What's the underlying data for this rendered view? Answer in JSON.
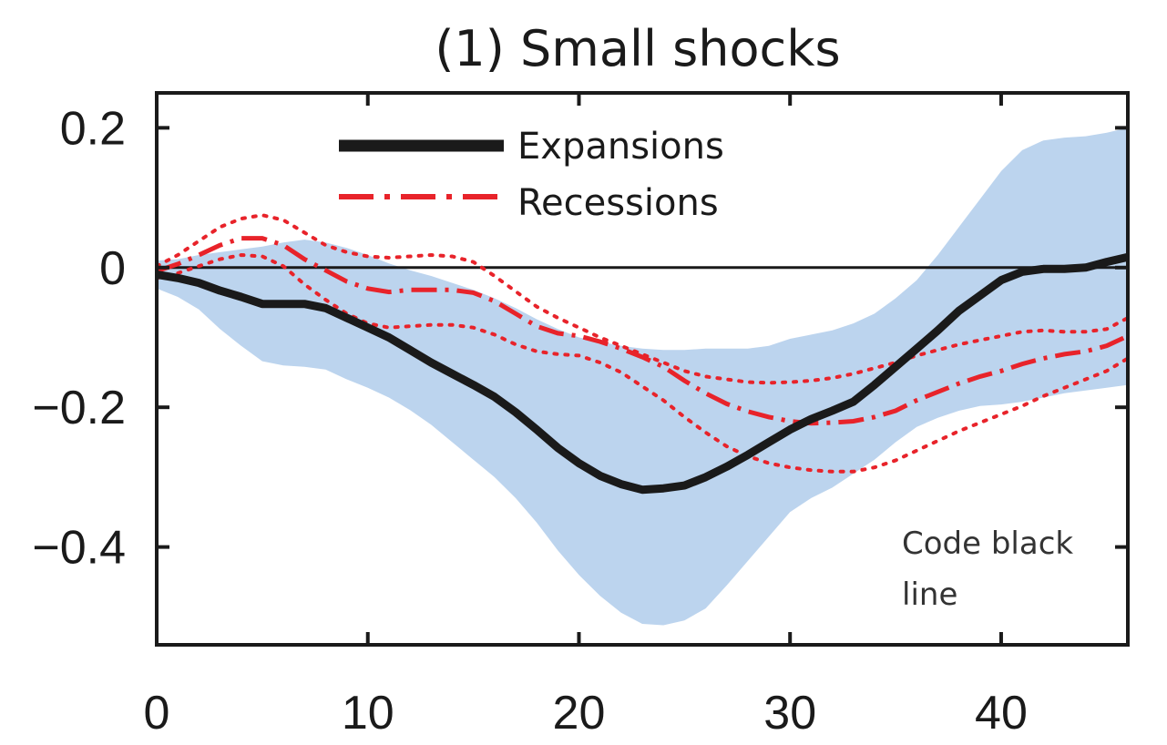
{
  "chart_data": {
    "type": "line",
    "title": "(1) Small shocks",
    "xlabel": "",
    "ylabel": "",
    "xlim": [
      0,
      46
    ],
    "ylim": [
      -0.54,
      0.25
    ],
    "x_ticks": [
      0,
      10,
      20,
      30,
      40
    ],
    "x_tick_labels": [
      "0",
      "10",
      "20",
      "30",
      "40"
    ],
    "y_ticks": [
      0.2,
      0,
      -0.2,
      -0.4
    ],
    "y_tick_labels": [
      "0.2",
      "0",
      "−0.2",
      "−0.4"
    ],
    "grid": false,
    "zero_line": true,
    "legend_position": "top-center",
    "colors": {
      "expansions": "#1a1a1a",
      "recessions": "#e8232a",
      "band": "#bcd4ee",
      "axis": "#1a1a1a"
    },
    "series": [
      {
        "name": "Expansions",
        "style": "solid",
        "x": [
          0,
          1,
          2,
          3,
          4,
          5,
          6,
          7,
          8,
          9,
          10,
          11,
          12,
          13,
          14,
          15,
          16,
          17,
          18,
          19,
          20,
          21,
          22,
          23,
          24,
          25,
          26,
          27,
          28,
          29,
          30,
          31,
          32,
          33,
          34,
          35,
          36,
          37,
          38,
          39,
          40,
          41,
          42,
          43,
          44,
          45,
          46
        ],
        "y": [
          -0.01,
          -0.015,
          -0.022,
          -0.033,
          -0.042,
          -0.052,
          -0.052,
          -0.052,
          -0.058,
          -0.072,
          -0.086,
          -0.1,
          -0.118,
          -0.136,
          -0.152,
          -0.168,
          -0.185,
          -0.207,
          -0.232,
          -0.258,
          -0.28,
          -0.298,
          -0.31,
          -0.318,
          -0.316,
          -0.312,
          -0.3,
          -0.285,
          -0.268,
          -0.25,
          -0.232,
          -0.217,
          -0.205,
          -0.192,
          -0.168,
          -0.142,
          -0.116,
          -0.09,
          -0.062,
          -0.04,
          -0.018,
          -0.006,
          -0.002,
          -0.002,
          0.0,
          0.008,
          0.015
        ]
      },
      {
        "name": "Recessions",
        "style": "dash-dot",
        "x": [
          0,
          1,
          2,
          3,
          4,
          5,
          6,
          7,
          8,
          9,
          10,
          11,
          12,
          13,
          14,
          15,
          16,
          17,
          18,
          19,
          20,
          21,
          22,
          23,
          24,
          25,
          26,
          27,
          28,
          29,
          30,
          31,
          32,
          33,
          34,
          35,
          36,
          37,
          38,
          39,
          40,
          41,
          42,
          43,
          44,
          45,
          46
        ],
        "y": [
          -0.005,
          0.005,
          0.018,
          0.032,
          0.042,
          0.042,
          0.032,
          0.012,
          -0.004,
          -0.02,
          -0.03,
          -0.035,
          -0.032,
          -0.032,
          -0.032,
          -0.036,
          -0.048,
          -0.066,
          -0.084,
          -0.094,
          -0.098,
          -0.106,
          -0.116,
          -0.128,
          -0.142,
          -0.162,
          -0.18,
          -0.195,
          -0.206,
          -0.214,
          -0.22,
          -0.223,
          -0.222,
          -0.22,
          -0.214,
          -0.205,
          -0.19,
          -0.178,
          -0.166,
          -0.156,
          -0.148,
          -0.138,
          -0.13,
          -0.124,
          -0.12,
          -0.112,
          -0.098
        ]
      }
    ],
    "bands": [
      {
        "of": "Expansions",
        "x": [
          0,
          1,
          2,
          3,
          4,
          5,
          6,
          7,
          8,
          9,
          10,
          11,
          12,
          13,
          14,
          15,
          16,
          17,
          18,
          19,
          20,
          21,
          22,
          23,
          24,
          25,
          26,
          27,
          28,
          29,
          30,
          31,
          32,
          33,
          34,
          35,
          36,
          37,
          38,
          39,
          40,
          41,
          42,
          43,
          44,
          45,
          46
        ],
        "upper": [
          0.01,
          0.012,
          0.018,
          0.022,
          0.026,
          0.03,
          0.036,
          0.04,
          0.036,
          0.028,
          0.018,
          0.006,
          -0.004,
          -0.012,
          -0.022,
          -0.032,
          -0.044,
          -0.058,
          -0.074,
          -0.088,
          -0.1,
          -0.106,
          -0.112,
          -0.116,
          -0.118,
          -0.118,
          -0.116,
          -0.116,
          -0.116,
          -0.112,
          -0.102,
          -0.096,
          -0.09,
          -0.08,
          -0.066,
          -0.044,
          -0.018,
          0.018,
          0.058,
          0.098,
          0.138,
          0.168,
          0.182,
          0.186,
          0.188,
          0.193,
          0.2
        ],
        "lower": [
          -0.03,
          -0.042,
          -0.06,
          -0.088,
          -0.112,
          -0.134,
          -0.14,
          -0.142,
          -0.146,
          -0.16,
          -0.172,
          -0.186,
          -0.204,
          -0.225,
          -0.25,
          -0.275,
          -0.3,
          -0.33,
          -0.365,
          -0.405,
          -0.44,
          -0.47,
          -0.494,
          -0.51,
          -0.512,
          -0.505,
          -0.488,
          -0.455,
          -0.42,
          -0.385,
          -0.35,
          -0.33,
          -0.315,
          -0.295,
          -0.275,
          -0.25,
          -0.228,
          -0.215,
          -0.205,
          -0.198,
          -0.196,
          -0.192,
          -0.186,
          -0.18,
          -0.176,
          -0.172,
          -0.168
        ]
      },
      {
        "of": "Recessions",
        "style": "dotted",
        "x": [
          0,
          1,
          2,
          3,
          4,
          5,
          6,
          7,
          8,
          9,
          10,
          11,
          12,
          13,
          14,
          15,
          16,
          17,
          18,
          19,
          20,
          21,
          22,
          23,
          24,
          25,
          26,
          27,
          28,
          29,
          30,
          31,
          32,
          33,
          34,
          35,
          36,
          37,
          38,
          39,
          40,
          41,
          42,
          43,
          44,
          45,
          46
        ],
        "upper": [
          0.002,
          0.018,
          0.038,
          0.058,
          0.07,
          0.075,
          0.068,
          0.05,
          0.032,
          0.022,
          0.016,
          0.014,
          0.016,
          0.018,
          0.016,
          0.008,
          -0.012,
          -0.034,
          -0.056,
          -0.072,
          -0.086,
          -0.1,
          -0.112,
          -0.124,
          -0.136,
          -0.148,
          -0.156,
          -0.16,
          -0.164,
          -0.165,
          -0.164,
          -0.162,
          -0.158,
          -0.152,
          -0.144,
          -0.136,
          -0.126,
          -0.118,
          -0.11,
          -0.104,
          -0.098,
          -0.092,
          -0.09,
          -0.092,
          -0.092,
          -0.088,
          -0.072
        ],
        "lower": [
          -0.015,
          -0.008,
          0.002,
          0.012,
          0.018,
          0.016,
          0.002,
          -0.024,
          -0.046,
          -0.066,
          -0.08,
          -0.086,
          -0.084,
          -0.082,
          -0.082,
          -0.086,
          -0.096,
          -0.11,
          -0.12,
          -0.124,
          -0.126,
          -0.136,
          -0.15,
          -0.17,
          -0.19,
          -0.214,
          -0.236,
          -0.256,
          -0.27,
          -0.28,
          -0.286,
          -0.29,
          -0.292,
          -0.292,
          -0.286,
          -0.276,
          -0.262,
          -0.248,
          -0.234,
          -0.222,
          -0.21,
          -0.198,
          -0.184,
          -0.172,
          -0.16,
          -0.148,
          -0.13
        ]
      }
    ],
    "annotation": [
      "Code black",
      "line"
    ]
  }
}
